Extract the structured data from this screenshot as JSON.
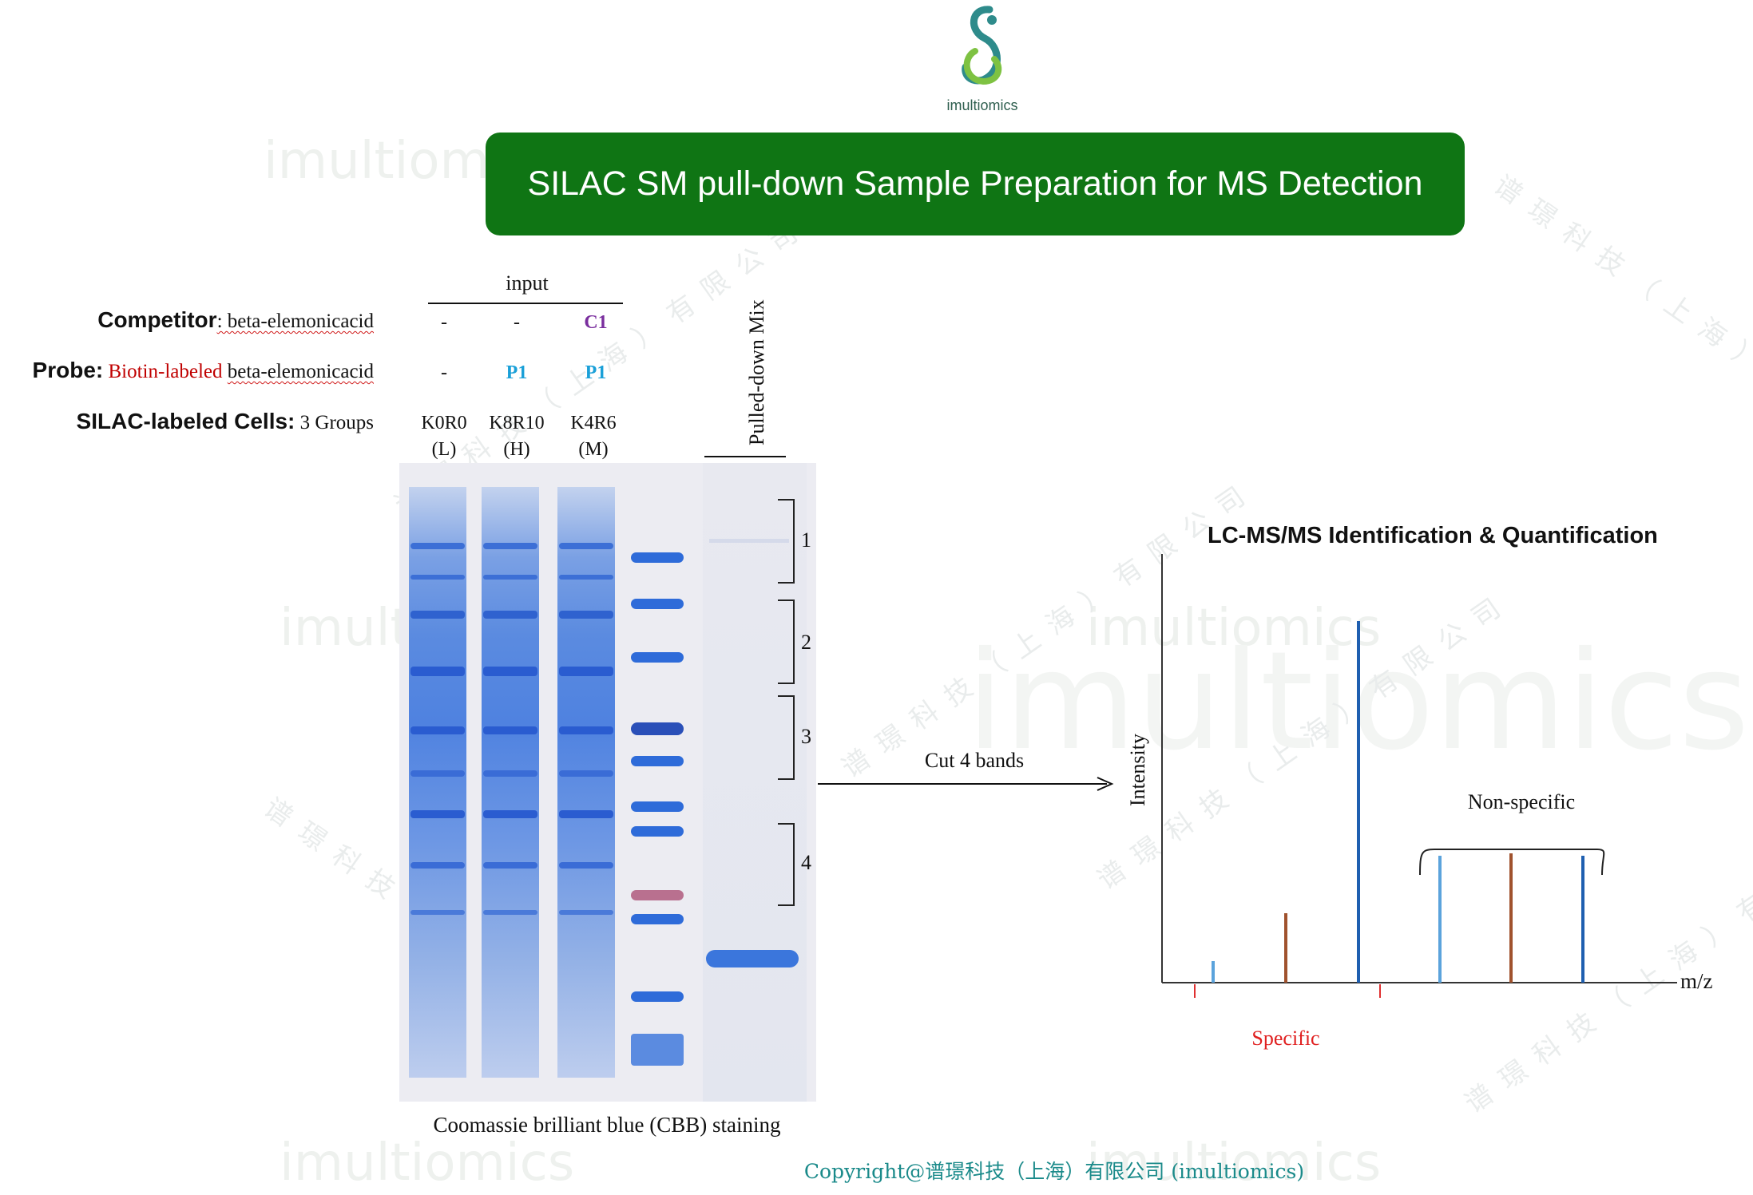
{
  "logo": {
    "text": "imultiomics"
  },
  "title": "SILAC SM pull-down Sample Preparation for MS Detection",
  "watermark": {
    "latin": "imultiomics",
    "chinese": "谱璟科技（上海）有限公司"
  },
  "input_header": "input",
  "rows": {
    "competitor": {
      "bold": "Competitor",
      "rest": ": beta-elemonicacid",
      "values": [
        "-",
        "-",
        "C1"
      ]
    },
    "probe": {
      "bold": "Probe:",
      "red": "Biotin-labeled",
      "rest": "beta-elemonicacid",
      "values": [
        "-",
        "P1",
        "P1"
      ]
    },
    "cells": {
      "bold": "SILAC-labeled Cells:",
      "rest": "3 Groups",
      "labels": [
        "K0R0",
        "K8R10",
        "K4R6"
      ],
      "sublabels": [
        "(L)",
        "(H)",
        "(M)"
      ]
    }
  },
  "pulled_down_label": "Pulled-down Mix",
  "band_numbers": [
    "1",
    "2",
    "3",
    "4"
  ],
  "gel_caption": "Coomassie brilliant blue (CBB) staining",
  "arrow_label": "Cut 4 bands",
  "ms_title": "LC-MS/MS Identification & Quantification",
  "axis": {
    "y": "Intensity",
    "x": "m/z"
  },
  "brackets": {
    "specific": "Specific",
    "nonspecific": "Non-specific"
  },
  "copyright": "Copyright@谱璟科技（上海）有限公司 (imultiomics)",
  "colors": {
    "title_bg": "#0f7514",
    "competitor_c1": "#7a2e9e",
    "probe_p1": "#1aa0d8",
    "red_text": "#c00000",
    "copyright": "#1a8a8a",
    "light": "#5ba3dc",
    "heavy": "#a0522d",
    "medium": "#1f5fb0"
  }
}
